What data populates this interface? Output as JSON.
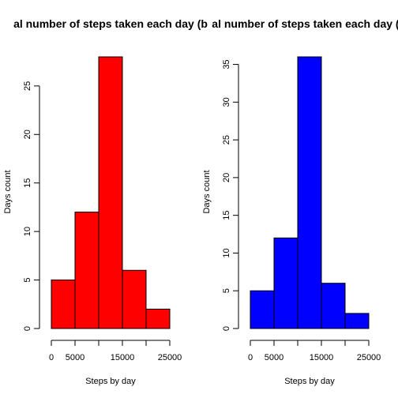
{
  "chart_data": [
    {
      "type": "bar",
      "title": "al number of steps taken each day (b",
      "xlabel": "Steps by day",
      "ylabel": "Days count",
      "bins": [
        [
          0,
          5000
        ],
        [
          5000,
          10000
        ],
        [
          10000,
          15000
        ],
        [
          15000,
          20000
        ],
        [
          20000,
          25000
        ]
      ],
      "values": [
        5,
        12,
        28,
        6,
        2
      ],
      "xticks": [
        0,
        5000,
        10000,
        15000,
        20000,
        25000
      ],
      "xtick_labels": [
        "0",
        "5000",
        "",
        "15000",
        "",
        "25000"
      ],
      "yticks": [
        0,
        5,
        10,
        15,
        20,
        25
      ],
      "ytick_labels": [
        "0",
        "5",
        "10",
        "15",
        "20",
        "25"
      ],
      "xlim": [
        0,
        25000
      ],
      "ylim": [
        0,
        28
      ],
      "bar_color": "#ff0000",
      "grid": false
    },
    {
      "type": "bar",
      "title": "al number of steps taken each day (R",
      "xlabel": "Steps by day",
      "ylabel": "Days count",
      "bins": [
        [
          0,
          5000
        ],
        [
          5000,
          10000
        ],
        [
          10000,
          15000
        ],
        [
          15000,
          20000
        ],
        [
          20000,
          25000
        ]
      ],
      "values": [
        5,
        12,
        36,
        6,
        2
      ],
      "xticks": [
        0,
        5000,
        10000,
        15000,
        20000,
        25000
      ],
      "xtick_labels": [
        "0",
        "5000",
        "",
        "15000",
        "",
        "25000"
      ],
      "yticks": [
        0,
        5,
        10,
        15,
        20,
        25,
        30,
        35
      ],
      "ytick_labels": [
        "0",
        "5",
        "10",
        "15",
        "20",
        "25",
        "30",
        "35"
      ],
      "xlim": [
        0,
        25000
      ],
      "ylim": [
        0,
        36
      ],
      "bar_color": "#0000ff",
      "grid": false
    }
  ]
}
